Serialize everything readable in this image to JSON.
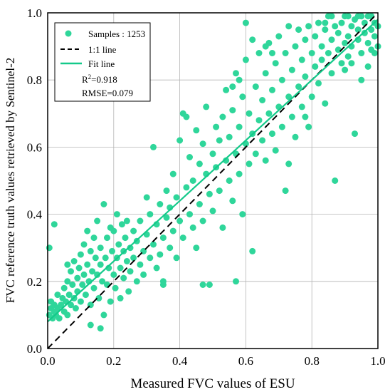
{
  "chart_data": {
    "type": "scatter",
    "xlabel": "Measured FVC values of ESU",
    "ylabel": "FVC reference truth values retrieved by Sentinel-2",
    "xlim": [
      0,
      1
    ],
    "ylim": [
      0,
      1
    ],
    "xticks": [
      "0.0",
      "0.2",
      "0.4",
      "0.6",
      "0.8",
      "1.0"
    ],
    "yticks": [
      "0.0",
      "0.2",
      "0.4",
      "0.6",
      "0.8",
      "1.0"
    ],
    "grid": true,
    "legend_position": "top-left",
    "point_color": "#2fd69a",
    "fit_color": "#14c98a",
    "legend": {
      "samples_label": "Samples : 1253",
      "one_to_one_label": "1:1 line",
      "fit_label": "Fit line",
      "r2_prefix": "R",
      "r2_sup": "2",
      "r2_value": "=0.918",
      "rmse_label": "RMSE=0.079"
    },
    "lines": [
      {
        "name": "1:1 line",
        "style": "dashed",
        "x": [
          0,
          1
        ],
        "y": [
          0,
          1
        ]
      },
      {
        "name": "Fit line",
        "style": "solid",
        "x": [
          0,
          1
        ],
        "y": [
          0.08,
          0.98
        ]
      }
    ],
    "points": [
      [
        0.005,
        0.1
      ],
      [
        0.01,
        0.12
      ],
      [
        0.01,
        0.14
      ],
      [
        0.015,
        0.09
      ],
      [
        0.02,
        0.11
      ],
      [
        0.02,
        0.13
      ],
      [
        0.025,
        0.1
      ],
      [
        0.03,
        0.12
      ],
      [
        0.03,
        0.16
      ],
      [
        0.035,
        0.09
      ],
      [
        0.04,
        0.13
      ],
      [
        0.045,
        0.15
      ],
      [
        0.05,
        0.11
      ],
      [
        0.05,
        0.18
      ],
      [
        0.055,
        0.14
      ],
      [
        0.06,
        0.1
      ],
      [
        0.06,
        0.2
      ],
      [
        0.065,
        0.16
      ],
      [
        0.07,
        0.13
      ],
      [
        0.07,
        0.23
      ],
      [
        0.075,
        0.19
      ],
      [
        0.08,
        0.15
      ],
      [
        0.08,
        0.26
      ],
      [
        0.085,
        0.12
      ],
      [
        0.09,
        0.21
      ],
      [
        0.09,
        0.17
      ],
      [
        0.095,
        0.24
      ],
      [
        0.1,
        0.14
      ],
      [
        0.1,
        0.28
      ],
      [
        0.105,
        0.19
      ],
      [
        0.11,
        0.22
      ],
      [
        0.11,
        0.31
      ],
      [
        0.115,
        0.16
      ],
      [
        0.12,
        0.25
      ],
      [
        0.12,
        0.35
      ],
      [
        0.125,
        0.2
      ],
      [
        0.13,
        0.29
      ],
      [
        0.13,
        0.13
      ],
      [
        0.135,
        0.23
      ],
      [
        0.14,
        0.33
      ],
      [
        0.14,
        0.18
      ],
      [
        0.145,
        0.27
      ],
      [
        0.15,
        0.38
      ],
      [
        0.15,
        0.22
      ],
      [
        0.155,
        0.15
      ],
      [
        0.16,
        0.3
      ],
      [
        0.16,
        0.25
      ],
      [
        0.165,
        0.2
      ],
      [
        0.17,
        0.1
      ],
      [
        0.17,
        0.43
      ],
      [
        0.175,
        0.27
      ],
      [
        0.18,
        0.33
      ],
      [
        0.18,
        0.19
      ],
      [
        0.185,
        0.24
      ],
      [
        0.19,
        0.36
      ],
      [
        0.19,
        0.14
      ],
      [
        0.195,
        0.29
      ],
      [
        0.2,
        0.22
      ],
      [
        0.2,
        0.35
      ],
      [
        0.205,
        0.18
      ],
      [
        0.21,
        0.27
      ],
      [
        0.21,
        0.4
      ],
      [
        0.215,
        0.31
      ],
      [
        0.22,
        0.24
      ],
      [
        0.22,
        0.15
      ],
      [
        0.225,
        0.37
      ],
      [
        0.23,
        0.29
      ],
      [
        0.23,
        0.21
      ],
      [
        0.235,
        0.33
      ],
      [
        0.24,
        0.26
      ],
      [
        0.24,
        0.38
      ],
      [
        0.245,
        0.17
      ],
      [
        0.25,
        0.3
      ],
      [
        0.25,
        0.23
      ],
      [
        0.26,
        0.35
      ],
      [
        0.26,
        0.27
      ],
      [
        0.27,
        0.2
      ],
      [
        0.27,
        0.32
      ],
      [
        0.28,
        0.25
      ],
      [
        0.28,
        0.38
      ],
      [
        0.29,
        0.29
      ],
      [
        0.29,
        0.22
      ],
      [
        0.3,
        0.34
      ],
      [
        0.3,
        0.45
      ],
      [
        0.31,
        0.27
      ],
      [
        0.31,
        0.4
      ],
      [
        0.32,
        0.31
      ],
      [
        0.32,
        0.6
      ],
      [
        0.33,
        0.24
      ],
      [
        0.33,
        0.37
      ],
      [
        0.34,
        0.43
      ],
      [
        0.34,
        0.28
      ],
      [
        0.35,
        0.33
      ],
      [
        0.35,
        0.2
      ],
      [
        0.36,
        0.39
      ],
      [
        0.36,
        0.47
      ],
      [
        0.37,
        0.3
      ],
      [
        0.37,
        0.42
      ],
      [
        0.38,
        0.35
      ],
      [
        0.38,
        0.52
      ],
      [
        0.39,
        0.27
      ],
      [
        0.39,
        0.45
      ],
      [
        0.4,
        0.38
      ],
      [
        0.4,
        0.62
      ],
      [
        0.41,
        0.33
      ],
      [
        0.41,
        0.7
      ],
      [
        0.42,
        0.48
      ],
      [
        0.42,
        0.69
      ],
      [
        0.43,
        0.4
      ],
      [
        0.43,
        0.57
      ],
      [
        0.44,
        0.36
      ],
      [
        0.44,
        0.5
      ],
      [
        0.45,
        0.65
      ],
      [
        0.45,
        0.3
      ],
      [
        0.46,
        0.55
      ],
      [
        0.46,
        0.43
      ],
      [
        0.47,
        0.61
      ],
      [
        0.47,
        0.38
      ],
      [
        0.48,
        0.52
      ],
      [
        0.48,
        0.72
      ],
      [
        0.49,
        0.46
      ],
      [
        0.49,
        0.19
      ],
      [
        0.5,
        0.58
      ],
      [
        0.5,
        0.41
      ],
      [
        0.51,
        0.66
      ],
      [
        0.51,
        0.54
      ],
      [
        0.52,
        0.47
      ],
      [
        0.52,
        0.62
      ],
      [
        0.53,
        0.36
      ],
      [
        0.53,
        0.69
      ],
      [
        0.54,
        0.56
      ],
      [
        0.54,
        0.77
      ],
      [
        0.55,
        0.5
      ],
      [
        0.55,
        0.63
      ],
      [
        0.56,
        0.44
      ],
      [
        0.56,
        0.71
      ],
      [
        0.57,
        0.58
      ],
      [
        0.57,
        0.82
      ],
      [
        0.58,
        0.52
      ],
      [
        0.58,
        0.66
      ],
      [
        0.59,
        0.4
      ],
      [
        0.59,
        0.75
      ],
      [
        0.6,
        0.61
      ],
      [
        0.6,
        0.86
      ],
      [
        0.61,
        0.55
      ],
      [
        0.61,
        0.7
      ],
      [
        0.62,
        0.64
      ],
      [
        0.62,
        0.29
      ],
      [
        0.63,
        0.78
      ],
      [
        0.63,
        0.58
      ],
      [
        0.64,
        0.68
      ],
      [
        0.64,
        0.88
      ],
      [
        0.65,
        0.62
      ],
      [
        0.65,
        0.74
      ],
      [
        0.66,
        0.56
      ],
      [
        0.66,
        0.82
      ],
      [
        0.67,
        0.7
      ],
      [
        0.67,
        0.91
      ],
      [
        0.68,
        0.64
      ],
      [
        0.68,
        0.77
      ],
      [
        0.69,
        0.85
      ],
      [
        0.69,
        0.59
      ],
      [
        0.7,
        0.72
      ],
      [
        0.7,
        0.93
      ],
      [
        0.71,
        0.66
      ],
      [
        0.71,
        0.8
      ],
      [
        0.72,
        0.47
      ],
      [
        0.72,
        0.88
      ],
      [
        0.73,
        0.75
      ],
      [
        0.73,
        0.96
      ],
      [
        0.74,
        0.69
      ],
      [
        0.74,
        0.83
      ],
      [
        0.75,
        0.9
      ],
      [
        0.75,
        0.63
      ],
      [
        0.76,
        0.78
      ],
      [
        0.76,
        0.95
      ],
      [
        0.77,
        0.86
      ],
      [
        0.77,
        0.72
      ],
      [
        0.78,
        0.92
      ],
      [
        0.78,
        0.81
      ],
      [
        0.79,
        0.96
      ],
      [
        0.79,
        0.66
      ],
      [
        0.8,
        0.88
      ],
      [
        0.8,
        0.75
      ],
      [
        0.81,
        0.93
      ],
      [
        0.81,
        0.84
      ],
      [
        0.82,
        0.97
      ],
      [
        0.82,
        0.79
      ],
      [
        0.83,
        0.9
      ],
      [
        0.83,
        0.86
      ],
      [
        0.84,
        0.95
      ],
      [
        0.84,
        0.73
      ],
      [
        0.85,
        0.88
      ],
      [
        0.85,
        0.99
      ],
      [
        0.86,
        0.92
      ],
      [
        0.86,
        0.82
      ],
      [
        0.87,
        0.96
      ],
      [
        0.87,
        0.5
      ],
      [
        0.88,
        0.89
      ],
      [
        0.88,
        0.94
      ],
      [
        0.89,
        0.97
      ],
      [
        0.89,
        0.85
      ],
      [
        0.9,
        0.91
      ],
      [
        0.9,
        0.99
      ],
      [
        0.91,
        0.93
      ],
      [
        0.91,
        0.87
      ],
      [
        0.92,
        0.96
      ],
      [
        0.92,
        0.9
      ],
      [
        0.93,
        0.98
      ],
      [
        0.93,
        0.64
      ],
      [
        0.94,
        0.92
      ],
      [
        0.94,
        0.95
      ],
      [
        0.95,
        0.99
      ],
      [
        0.95,
        0.88
      ],
      [
        0.96,
        0.94
      ],
      [
        0.96,
        0.97
      ],
      [
        0.97,
        0.91
      ],
      [
        0.97,
        0.99
      ],
      [
        0.98,
        0.95
      ],
      [
        0.98,
        0.89
      ],
      [
        0.99,
        0.97
      ],
      [
        0.99,
        0.93
      ],
      [
        1.0,
        0.96
      ],
      [
        1.0,
        0.9
      ],
      [
        0.005,
        0.3
      ],
      [
        0.02,
        0.37
      ],
      [
        0.06,
        0.25
      ],
      [
        0.13,
        0.07
      ],
      [
        0.16,
        0.06
      ],
      [
        0.35,
        0.19
      ],
      [
        0.47,
        0.19
      ],
      [
        0.57,
        0.2
      ],
      [
        0.56,
        0.78
      ],
      [
        0.58,
        0.8
      ],
      [
        0.62,
        0.92
      ],
      [
        0.6,
        0.97
      ],
      [
        0.68,
        0.88
      ],
      [
        0.66,
        0.9
      ],
      [
        0.73,
        0.55
      ],
      [
        0.78,
        0.69
      ],
      [
        0.84,
        0.97
      ],
      [
        0.86,
        0.99
      ],
      [
        0.9,
        0.83
      ],
      [
        0.92,
        0.85
      ],
      [
        0.95,
        0.8
      ],
      [
        0.97,
        0.84
      ],
      [
        0.98,
        0.99
      ],
      [
        0.99,
        0.88
      ],
      [
        0.94,
        0.99
      ],
      [
        0.91,
        0.99
      ]
    ]
  }
}
